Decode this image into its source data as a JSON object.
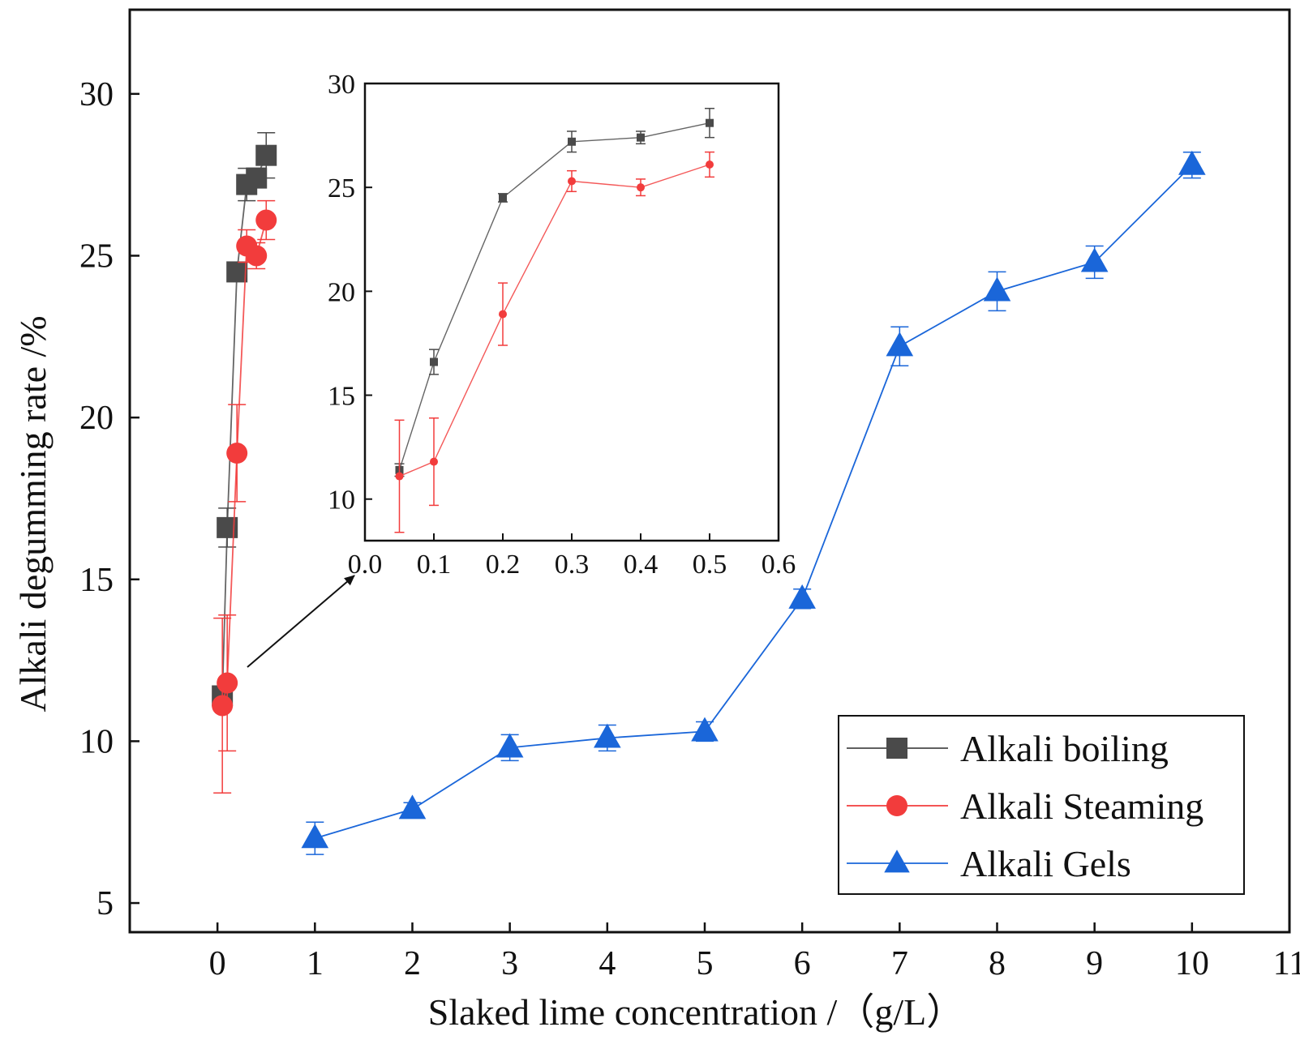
{
  "chart_data": {
    "type": "line",
    "xlabel": "Slaked lime concentration  /（g/L）",
    "ylabel": "Alkali degumming rate /%",
    "xlim": [
      -0.9,
      11
    ],
    "ylim": [
      4.1,
      32.6
    ],
    "xticks": [
      0,
      1,
      2,
      3,
      4,
      5,
      6,
      7,
      8,
      9,
      10,
      11
    ],
    "yticks": [
      5,
      10,
      15,
      20,
      25,
      30
    ],
    "legend_position": "bottom-right",
    "series": [
      {
        "name": "Alkali boiling",
        "color": "#4a4a4a",
        "marker": "square",
        "x": [
          0.05,
          0.1,
          0.2,
          0.3,
          0.4,
          0.5
        ],
        "y": [
          11.4,
          16.6,
          24.5,
          27.2,
          27.4,
          28.1
        ],
        "err": [
          0.3,
          0.6,
          0.2,
          0.5,
          0.3,
          0.7
        ]
      },
      {
        "name": "Alkali Steaming",
        "color": "#f23c3c",
        "marker": "circle",
        "x": [
          0.05,
          0.1,
          0.2,
          0.3,
          0.4,
          0.5
        ],
        "y": [
          11.1,
          11.8,
          18.9,
          25.3,
          25.0,
          26.1
        ],
        "err": [
          2.7,
          2.1,
          1.5,
          0.5,
          0.4,
          0.6
        ]
      },
      {
        "name": "Alkali Gels",
        "color": "#1a66d9",
        "marker": "triangle",
        "x": [
          1,
          2,
          3,
          4,
          5,
          6,
          7,
          8,
          9,
          10
        ],
        "y": [
          7.0,
          7.9,
          9.8,
          10.1,
          10.3,
          14.4,
          22.2,
          23.9,
          24.8,
          27.8
        ],
        "err": [
          0.5,
          0.2,
          0.4,
          0.4,
          0.3,
          0.3,
          0.6,
          0.6,
          0.5,
          0.4
        ]
      }
    ],
    "inset": {
      "xlim": [
        0.0,
        0.6
      ],
      "ylim": [
        8.0,
        30.0
      ],
      "xticks": [
        0.0,
        0.1,
        0.2,
        0.3,
        0.4,
        0.5,
        0.6
      ],
      "yticks": [
        10,
        15,
        20,
        25,
        30
      ],
      "xtick_labels": [
        "0.0",
        "0.1",
        "0.2",
        "0.3",
        "0.4",
        "0.5",
        "0.6"
      ],
      "ytick_labels": [
        "10",
        "15",
        "20",
        "25",
        "30"
      ],
      "series_refs": [
        "Alkali boiling",
        "Alkali Steaming"
      ]
    },
    "annotation": "arrow pointing from main-plot cluster at x≈0 to inset"
  }
}
